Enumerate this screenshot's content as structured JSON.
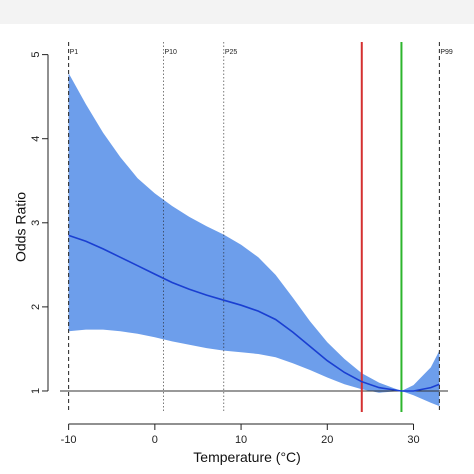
{
  "chart_data": {
    "type": "area",
    "title": "",
    "xlabel": "Temperature (°C)",
    "ylabel": "Odds Ratio",
    "xlim": [
      -11,
      34
    ],
    "ylim": [
      0.75,
      5.15
    ],
    "x_ticks": [
      -10,
      0,
      10,
      20,
      30
    ],
    "x_tick_labels": [
      "-10",
      "0",
      "10",
      "20",
      "30"
    ],
    "y_ticks": [
      1,
      2,
      3,
      4,
      5
    ],
    "y_tick_labels": [
      "1",
      "2",
      "3",
      "4",
      "5"
    ],
    "grid": false,
    "colors": {
      "band": "#6d9eeb",
      "line": "#1a3fd1",
      "red_line": "#d43030",
      "green_line": "#2db52d",
      "reference": "#333333"
    },
    "reference_line": {
      "y": 1
    },
    "percentiles": [
      {
        "label": "P1",
        "x": -10,
        "style": "dashed"
      },
      {
        "label": "P10",
        "x": 1,
        "style": "dotted"
      },
      {
        "label": "P25",
        "x": 8,
        "style": "dotted"
      },
      {
        "label": "P99",
        "x": 33,
        "style": "dashed"
      }
    ],
    "vertical_lines": [
      {
        "x": 24,
        "color": "#d43030"
      },
      {
        "x": 28.6,
        "color": "#2db52d"
      }
    ],
    "series": [
      {
        "x": [
          -10,
          -8,
          -6,
          -4,
          -2,
          0,
          2,
          4,
          6,
          8,
          10,
          12,
          14,
          16,
          18,
          20,
          22,
          24,
          26,
          28.6,
          30,
          32,
          33
        ],
        "values": [
          2.85,
          2.78,
          2.69,
          2.59,
          2.49,
          2.39,
          2.29,
          2.21,
          2.14,
          2.08,
          2.02,
          1.95,
          1.85,
          1.7,
          1.53,
          1.36,
          1.22,
          1.11,
          1.04,
          1.0,
          1.0,
          1.04,
          1.08
        ],
        "lower": [
          1.71,
          1.73,
          1.73,
          1.71,
          1.68,
          1.64,
          1.59,
          1.55,
          1.51,
          1.48,
          1.46,
          1.44,
          1.4,
          1.33,
          1.25,
          1.16,
          1.08,
          1.02,
          0.98,
          1.0,
          0.95,
          0.86,
          0.82
        ],
        "upper": [
          4.78,
          4.41,
          4.07,
          3.78,
          3.53,
          3.35,
          3.2,
          3.07,
          2.96,
          2.86,
          2.74,
          2.59,
          2.38,
          2.11,
          1.83,
          1.58,
          1.38,
          1.21,
          1.1,
          1.0,
          1.07,
          1.28,
          1.48
        ]
      }
    ]
  }
}
